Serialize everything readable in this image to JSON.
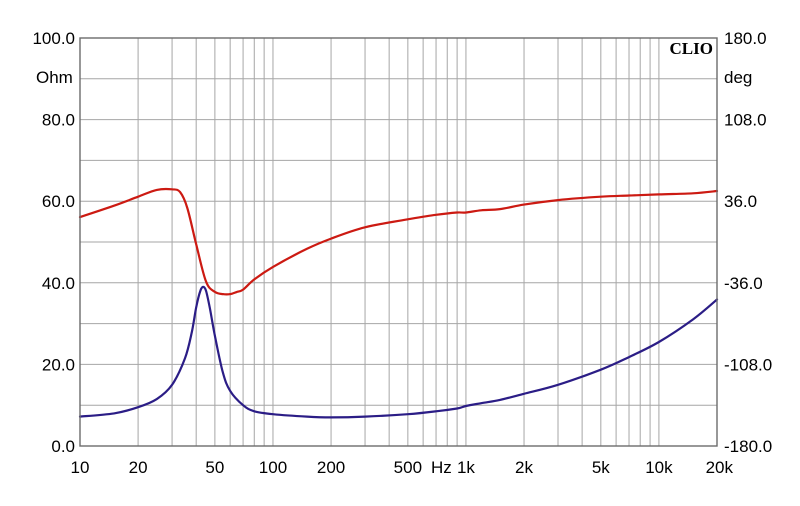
{
  "chart_data": {
    "type": "line",
    "title": "",
    "brand": "CLIO",
    "xlabel": "Hz",
    "ylabel_left": "Ohm",
    "ylabel_right": "deg",
    "x_scale": "log",
    "xlim": [
      10,
      20000
    ],
    "ylim_left": [
      0,
      100
    ],
    "ylim_right": [
      -180,
      180
    ],
    "grid": true,
    "x_ticks": [
      {
        "value": 10,
        "label": "10"
      },
      {
        "value": 20,
        "label": "20"
      },
      {
        "value": 50,
        "label": "50"
      },
      {
        "value": 100,
        "label": "100"
      },
      {
        "value": 200,
        "label": "200"
      },
      {
        "value": 500,
        "label": "500"
      },
      {
        "value": 1000,
        "label": "1k"
      },
      {
        "value": 2000,
        "label": "2k"
      },
      {
        "value": 5000,
        "label": "5k"
      },
      {
        "value": 10000,
        "label": "10k"
      },
      {
        "value": 20000,
        "label": "20k"
      }
    ],
    "y_ticks_left": [
      {
        "value": 100,
        "label": "100.0"
      },
      {
        "value": 80,
        "label": "80.0"
      },
      {
        "value": 60,
        "label": "60.0"
      },
      {
        "value": 40,
        "label": "40.0"
      },
      {
        "value": 20,
        "label": "20.0"
      },
      {
        "value": 0,
        "label": "0.0"
      }
    ],
    "y_ticks_right": [
      {
        "value": 180,
        "label": "180.0"
      },
      {
        "value": 108,
        "label": "108.0"
      },
      {
        "value": 36,
        "label": "36.0"
      },
      {
        "value": -36,
        "label": "-36.0"
      },
      {
        "value": -108,
        "label": "-108.0"
      },
      {
        "value": -180,
        "label": "-180.0"
      }
    ],
    "series": [
      {
        "name": "impedance",
        "axis": "left",
        "unit": "Ohm",
        "color": "#2b1d86",
        "x": [
          10,
          15,
          20,
          25,
          30,
          35,
          38,
          40,
          42,
          43.5,
          45,
          47,
          50,
          55,
          60,
          70,
          80,
          100,
          150,
          200,
          300,
          500,
          700,
          900,
          1000,
          1200,
          1500,
          2000,
          3000,
          5000,
          7000,
          10000,
          15000,
          20000
        ],
        "y": [
          7.2,
          8.0,
          9.5,
          11.5,
          15.0,
          21.5,
          28.0,
          34.0,
          38.0,
          39.0,
          38.0,
          34.0,
          27.0,
          18.0,
          13.5,
          10.0,
          8.5,
          7.8,
          7.2,
          7.0,
          7.2,
          7.8,
          8.5,
          9.2,
          9.8,
          10.5,
          11.3,
          12.8,
          15.0,
          18.7,
          21.8,
          25.5,
          31.0,
          35.9
        ]
      },
      {
        "name": "phase",
        "axis": "right",
        "unit": "deg",
        "color": "#cc1a12",
        "x": [
          10,
          15,
          20,
          25,
          30,
          33,
          36,
          40,
          45,
          50,
          55,
          60,
          65,
          70,
          80,
          100,
          150,
          200,
          300,
          500,
          700,
          900,
          1000,
          1200,
          1500,
          2000,
          3000,
          5000,
          7000,
          10000,
          15000,
          20000
        ],
        "y": [
          22,
          32,
          40,
          46,
          46.5,
          44,
          30,
          -2,
          -35,
          -44,
          -46,
          -46,
          -44,
          -42,
          -33,
          -22,
          -6,
          3,
          13,
          20,
          24,
          26,
          26,
          28,
          29,
          33,
          37,
          40,
          41,
          42,
          43,
          45
        ]
      }
    ]
  }
}
